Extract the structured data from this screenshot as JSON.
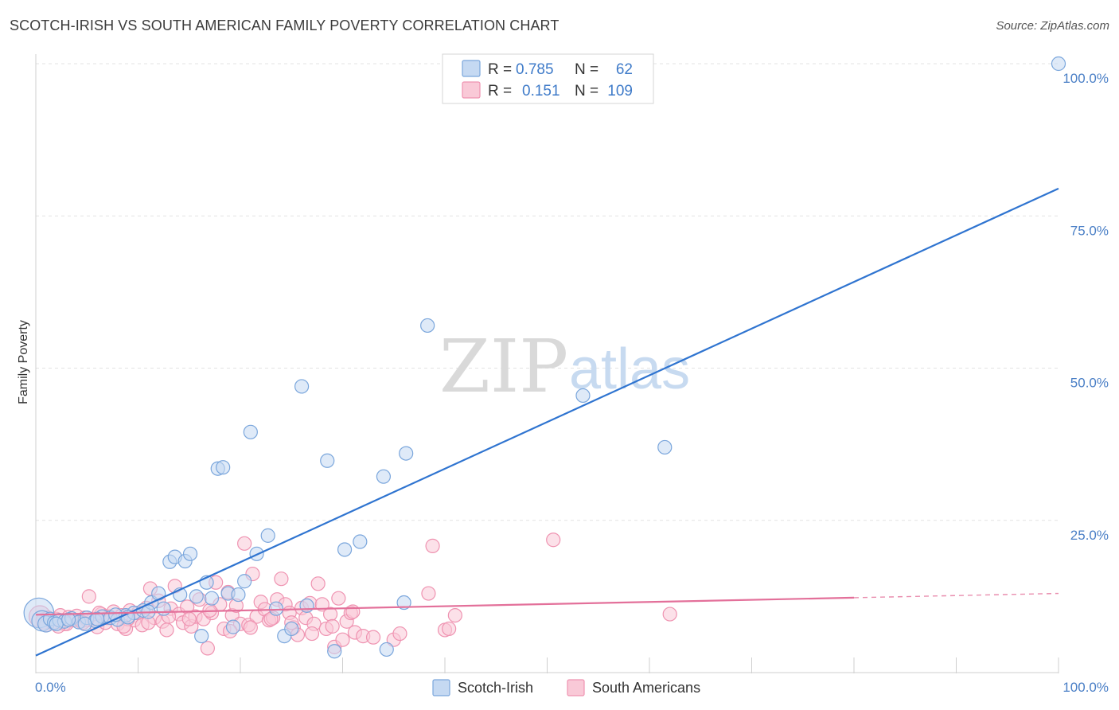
{
  "header": {
    "title": "SCOTCH-IRISH VS SOUTH AMERICAN FAMILY POVERTY CORRELATION CHART",
    "source": "Source: ZipAtlas.com"
  },
  "watermark": {
    "zip": "ZIP",
    "atlas": "atlas"
  },
  "colors": {
    "blue_fill": "#c5d9f2",
    "blue_stroke": "#7aa6dc",
    "blue_line": "#2f74d0",
    "pink_fill": "#f9c9d7",
    "pink_stroke": "#ef93b1",
    "pink_line": "#e3709a",
    "grid": "#e3e3e3",
    "tick_text": "#4a7fc6"
  },
  "chart_data": {
    "type": "scatter",
    "title": "SCOTCH-IRISH VS SOUTH AMERICAN FAMILY POVERTY CORRELATION CHART",
    "xlabel": "",
    "ylabel": "Family Poverty",
    "xlim": [
      0,
      100
    ],
    "ylim": [
      0,
      100
    ],
    "x_tick_labels": [
      "0.0%",
      "100.0%"
    ],
    "y_ticks": [
      25,
      50,
      75,
      100
    ],
    "y_tick_labels": [
      "25.0%",
      "50.0%",
      "75.0%",
      "100.0%"
    ],
    "legend": {
      "placement": "top-center",
      "rows": [
        {
          "r_label": "R =",
          "r_value": "0.785",
          "n_label": "N =",
          "n_value": "62"
        },
        {
          "r_label": "R =",
          "r_value": "0.151",
          "n_label": "N =",
          "n_value": "109"
        }
      ]
    },
    "bottom_legend": [
      "Scotch-Irish",
      "South Americans"
    ],
    "series": [
      {
        "name": "Scotch-Irish",
        "R": 0.785,
        "N": 62,
        "trend": {
          "x": [
            0,
            100
          ],
          "y": [
            2.8,
            79.5
          ],
          "dashed_from": null
        },
        "points": [
          [
            0.3,
            9.8,
            2.2
          ],
          [
            0.6,
            8.5,
            1.5
          ],
          [
            1.0,
            8.0,
            1.2
          ],
          [
            1.4,
            8.8,
            1.0
          ],
          [
            1.8,
            8.2,
            1.0
          ],
          [
            2.3,
            8.6,
            1.0
          ],
          [
            2.8,
            8.4,
            1.0
          ],
          [
            3.5,
            8.9,
            1.0
          ],
          [
            4.2,
            8.3,
            1.0
          ],
          [
            5.0,
            9.0,
            1.0
          ],
          [
            5.8,
            8.5,
            1.0
          ],
          [
            6.5,
            9.2,
            1.0
          ],
          [
            7.3,
            9.0,
            1.0
          ],
          [
            8.0,
            8.7,
            1.0
          ],
          [
            8.8,
            9.4,
            1.0
          ],
          [
            9.6,
            9.8,
            1.0
          ],
          [
            10.5,
            10.2,
            1.0
          ],
          [
            11.3,
            11.5,
            1.0
          ],
          [
            12.0,
            13.0,
            1.0
          ],
          [
            12.5,
            10.5,
            1.0
          ],
          [
            13.1,
            18.2,
            1.0
          ],
          [
            13.6,
            19.0,
            1.0
          ],
          [
            14.1,
            12.8,
            1.0
          ],
          [
            14.6,
            18.3,
            1.0
          ],
          [
            15.1,
            19.5,
            1.0
          ],
          [
            15.7,
            12.5,
            1.0
          ],
          [
            16.2,
            6.0,
            1.0
          ],
          [
            16.7,
            14.8,
            1.0
          ],
          [
            17.2,
            12.2,
            1.0
          ],
          [
            17.8,
            33.5,
            1.0
          ],
          [
            18.3,
            33.7,
            1.0
          ],
          [
            18.8,
            13.0,
            1.0
          ],
          [
            19.3,
            7.5,
            1.0
          ],
          [
            19.8,
            12.8,
            1.0
          ],
          [
            20.4,
            15.0,
            1.0
          ],
          [
            21.0,
            39.5,
            1.0
          ],
          [
            21.6,
            19.5,
            1.0
          ],
          [
            22.7,
            22.5,
            1.0
          ],
          [
            23.5,
            10.5,
            1.0
          ],
          [
            24.3,
            6.0,
            1.0
          ],
          [
            25.0,
            7.2,
            1.0
          ],
          [
            26.0,
            47.0,
            1.0
          ],
          [
            26.5,
            11.0,
            1.0
          ],
          [
            28.5,
            34.8,
            1.0
          ],
          [
            29.2,
            3.5,
            1.0
          ],
          [
            30.2,
            20.2,
            1.0
          ],
          [
            31.7,
            21.5,
            1.0
          ],
          [
            34.0,
            32.2,
            1.0
          ],
          [
            34.3,
            3.8,
            1.0
          ],
          [
            36.0,
            11.5,
            1.0
          ],
          [
            36.2,
            36.0,
            1.0
          ],
          [
            38.3,
            57.0,
            1.0
          ],
          [
            53.5,
            45.5,
            1.0
          ],
          [
            61.5,
            37.0,
            1.0
          ],
          [
            100.0,
            100.0,
            1.0
          ],
          [
            4.8,
            8.0,
            1.0
          ],
          [
            6.0,
            8.8,
            1.0
          ],
          [
            7.8,
            9.5,
            1.0
          ],
          [
            9.0,
            9.1,
            1.0
          ],
          [
            11.0,
            10.0,
            1.0
          ],
          [
            2.0,
            8.0,
            1.0
          ],
          [
            3.2,
            8.7,
            1.0
          ]
        ]
      },
      {
        "name": "South Americans",
        "R": 0.151,
        "N": 109,
        "trend": {
          "x": [
            0,
            100
          ],
          "y": [
            9.5,
            13.0
          ],
          "dashed_from": 80
        },
        "points": [
          [
            0.4,
            9.2,
            1.6
          ],
          [
            0.8,
            8.5,
            1.2
          ],
          [
            1.2,
            9.0,
            1.0
          ],
          [
            1.6,
            8.2,
            1.0
          ],
          [
            2.0,
            8.8,
            1.0
          ],
          [
            2.4,
            9.4,
            1.0
          ],
          [
            2.8,
            8.0,
            1.0
          ],
          [
            3.2,
            9.1,
            1.0
          ],
          [
            3.6,
            8.6,
            1.0
          ],
          [
            4.0,
            9.3,
            1.0
          ],
          [
            4.4,
            8.4,
            1.0
          ],
          [
            4.8,
            9.0,
            1.0
          ],
          [
            5.2,
            12.5,
            1.0
          ],
          [
            5.6,
            8.8,
            1.0
          ],
          [
            6.0,
            7.5,
            1.0
          ],
          [
            6.4,
            9.6,
            1.0
          ],
          [
            6.8,
            8.2,
            1.0
          ],
          [
            7.2,
            9.2,
            1.0
          ],
          [
            7.6,
            10.0,
            1.0
          ],
          [
            8.0,
            8.0,
            1.0
          ],
          [
            8.4,
            9.4,
            1.0
          ],
          [
            8.8,
            7.2,
            1.0
          ],
          [
            9.2,
            10.2,
            1.0
          ],
          [
            9.6,
            8.6,
            1.0
          ],
          [
            10.0,
            9.8,
            1.0
          ],
          [
            10.4,
            7.8,
            1.0
          ],
          [
            10.8,
            10.6,
            1.0
          ],
          [
            11.2,
            13.8,
            1.0
          ],
          [
            11.6,
            9.0,
            1.0
          ],
          [
            12.0,
            11.8,
            1.0
          ],
          [
            12.4,
            8.4,
            1.0
          ],
          [
            12.8,
            7.0,
            1.0
          ],
          [
            13.2,
            10.5,
            1.0
          ],
          [
            13.6,
            14.2,
            1.0
          ],
          [
            14.0,
            9.6,
            1.0
          ],
          [
            14.4,
            8.2,
            1.0
          ],
          [
            14.8,
            10.8,
            1.0
          ],
          [
            15.2,
            7.6,
            1.0
          ],
          [
            15.6,
            9.2,
            1.0
          ],
          [
            16.0,
            12.0,
            1.0
          ],
          [
            16.4,
            8.8,
            1.0
          ],
          [
            16.8,
            4.0,
            1.0
          ],
          [
            17.2,
            9.8,
            1.0
          ],
          [
            17.6,
            14.8,
            1.0
          ],
          [
            18.0,
            11.2,
            1.0
          ],
          [
            18.4,
            7.2,
            1.0
          ],
          [
            18.8,
            13.2,
            1.0
          ],
          [
            19.2,
            9.4,
            1.0
          ],
          [
            19.6,
            11.0,
            1.0
          ],
          [
            20.0,
            8.0,
            1.0
          ],
          [
            20.4,
            21.2,
            1.0
          ],
          [
            20.8,
            7.8,
            1.0
          ],
          [
            21.2,
            16.2,
            1.0
          ],
          [
            21.6,
            9.2,
            1.0
          ],
          [
            22.0,
            11.6,
            1.0
          ],
          [
            22.4,
            10.4,
            1.0
          ],
          [
            22.8,
            8.6,
            1.0
          ],
          [
            23.2,
            9.0,
            1.0
          ],
          [
            23.6,
            12.0,
            1.0
          ],
          [
            24.0,
            15.4,
            1.0
          ],
          [
            24.4,
            11.2,
            1.0
          ],
          [
            24.8,
            9.8,
            1.0
          ],
          [
            25.2,
            7.4,
            1.0
          ],
          [
            25.6,
            6.2,
            1.0
          ],
          [
            26.0,
            10.6,
            1.0
          ],
          [
            26.4,
            9.0,
            1.0
          ],
          [
            26.8,
            11.4,
            1.0
          ],
          [
            27.2,
            8.0,
            1.0
          ],
          [
            27.6,
            14.6,
            1.0
          ],
          [
            28.0,
            11.2,
            1.0
          ],
          [
            28.4,
            7.2,
            1.0
          ],
          [
            28.8,
            9.6,
            1.0
          ],
          [
            29.2,
            4.2,
            1.0
          ],
          [
            29.6,
            12.2,
            1.0
          ],
          [
            30.0,
            5.4,
            1.0
          ],
          [
            30.4,
            8.4,
            1.0
          ],
          [
            30.8,
            9.8,
            1.0
          ],
          [
            31.2,
            6.6,
            1.0
          ],
          [
            32.0,
            6.0,
            1.0
          ],
          [
            35.0,
            5.4,
            1.0
          ],
          [
            35.6,
            6.4,
            1.0
          ],
          [
            38.4,
            13.0,
            1.0
          ],
          [
            38.8,
            20.8,
            1.0
          ],
          [
            40.0,
            7.0,
            1.0
          ],
          [
            40.4,
            7.2,
            1.0
          ],
          [
            41.0,
            9.4,
            1.0
          ],
          [
            50.6,
            21.8,
            1.0
          ],
          [
            62.0,
            9.6,
            1.0
          ],
          [
            1.0,
            7.8,
            1.0
          ],
          [
            3.0,
            8.0,
            1.0
          ],
          [
            5.0,
            8.6,
            1.0
          ],
          [
            7.0,
            9.0,
            1.0
          ],
          [
            9.0,
            8.8,
            1.0
          ],
          [
            11.0,
            8.2,
            1.0
          ],
          [
            13.0,
            9.2,
            1.0
          ],
          [
            15.0,
            8.8,
            1.0
          ],
          [
            17.0,
            10.2,
            1.0
          ],
          [
            19.0,
            6.8,
            1.0
          ],
          [
            21.0,
            7.4,
            1.0
          ],
          [
            23.0,
            8.8,
            1.0
          ],
          [
            25.0,
            8.2,
            1.0
          ],
          [
            27.0,
            6.4,
            1.0
          ],
          [
            29.0,
            7.6,
            1.0
          ],
          [
            31.0,
            10.0,
            1.0
          ],
          [
            33.0,
            5.8,
            1.0
          ],
          [
            2.2,
            7.6,
            1.0
          ],
          [
            4.6,
            8.2,
            1.0
          ],
          [
            6.2,
            9.8,
            1.0
          ],
          [
            8.6,
            7.6,
            1.0
          ]
        ]
      }
    ]
  }
}
